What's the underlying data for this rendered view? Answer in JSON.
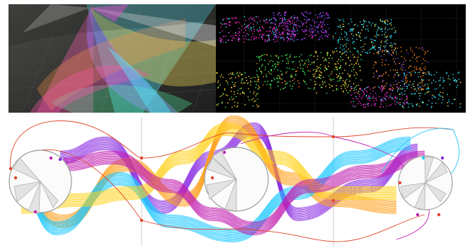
{
  "panels": [
    {
      "name": "light-fan-render",
      "background": "#2a2a2a",
      "palette": [
        "#ff2d9a",
        "#ffe23a",
        "#2ee8ff",
        "#8a4dff",
        "#3cff9a",
        "#ff7a1a"
      ]
    },
    {
      "name": "point-cloud-render",
      "background": "#000000",
      "palette": [
        "#ff2de0",
        "#2ee8ff",
        "#ffe23a",
        "#3cff6a",
        "#ff8a1a",
        "#8a4dff"
      ]
    },
    {
      "name": "mechanism-curve-diagram",
      "background": "#ffffff",
      "palette": [
        "#8a2be2",
        "#ff9f1a",
        "#1ec8ff",
        "#ffd21a",
        "#c01fb0",
        "#e0442a"
      ]
    }
  ]
}
